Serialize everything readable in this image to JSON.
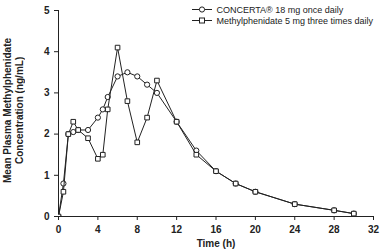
{
  "chart_data": {
    "type": "line",
    "x_label": "Time (h)",
    "y_label": "Mean Plasma Methylphenidate Concentration (ng/mL)",
    "x": [
      0,
      0.5,
      1,
      1.5,
      2,
      3,
      4,
      4.5,
      5,
      6,
      7,
      8,
      9,
      10,
      12,
      14,
      16,
      18,
      20,
      24,
      28,
      30
    ],
    "series": [
      {
        "name": "CONCERTA® 18 mg once daily",
        "color": "#222222",
        "marker": "circle",
        "values": [
          0,
          0.8,
          2.0,
          2.05,
          2.1,
          2.1,
          2.4,
          2.6,
          2.9,
          3.4,
          3.5,
          3.4,
          3.2,
          3.0,
          2.3,
          1.6,
          1.1,
          0.8,
          0.6,
          0.3,
          0.15,
          0.07
        ]
      },
      {
        "name": "Methylphenidate 5 mg three times daily",
        "color": "#222222",
        "marker": "square",
        "values": [
          0,
          0.6,
          2.0,
          2.3,
          2.1,
          1.9,
          1.4,
          1.5,
          2.6,
          4.1,
          2.8,
          1.8,
          2.4,
          3.3,
          2.3,
          1.5,
          1.1,
          0.8,
          0.6,
          0.3,
          0.15,
          0.07
        ]
      }
    ],
    "xlim": [
      0,
      32
    ],
    "xticks": [
      0,
      4,
      8,
      12,
      16,
      20,
      24,
      28,
      32
    ],
    "ylim": [
      0,
      5
    ],
    "yticks": [
      0,
      1,
      2,
      3,
      4,
      5
    ],
    "legend": "top-right",
    "grid": false
  }
}
